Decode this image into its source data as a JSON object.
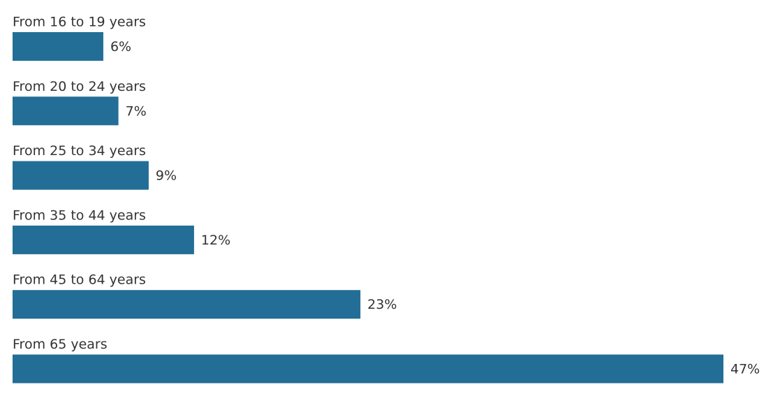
{
  "chart_data": {
    "type": "bar",
    "orientation": "horizontal",
    "categories": [
      "From 16 to 19 years",
      "From 20 to 24 years",
      "From 25 to 34 years",
      "From 35 to 44 years",
      "From 45 to 64 years",
      "From 65 years"
    ],
    "values": [
      6,
      7,
      9,
      12,
      23,
      47
    ],
    "value_labels": [
      "6%",
      "7%",
      "9%",
      "12%",
      "23%",
      "47%"
    ],
    "color": "#236e96"
  }
}
